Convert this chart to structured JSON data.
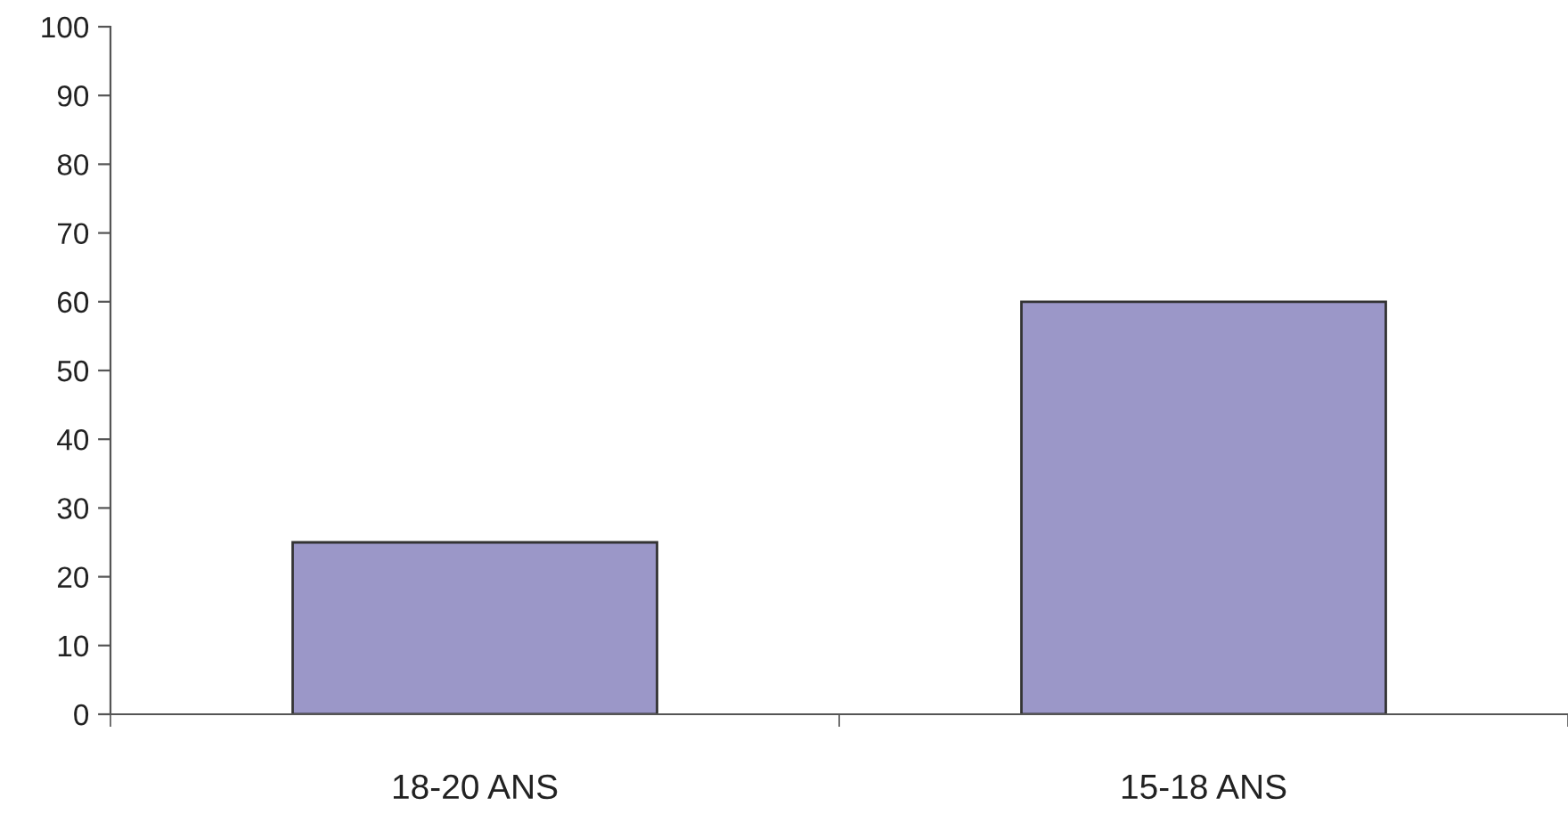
{
  "chart_data": {
    "type": "bar",
    "categories": [
      "18-20 ANS",
      "15-18 ANS"
    ],
    "values": [
      25,
      60
    ],
    "color": "#9b97c8",
    "ylim": [
      0,
      100
    ],
    "yticks": [
      0,
      10,
      20,
      30,
      40,
      50,
      60,
      70,
      80,
      90,
      100
    ],
    "grid": false
  }
}
